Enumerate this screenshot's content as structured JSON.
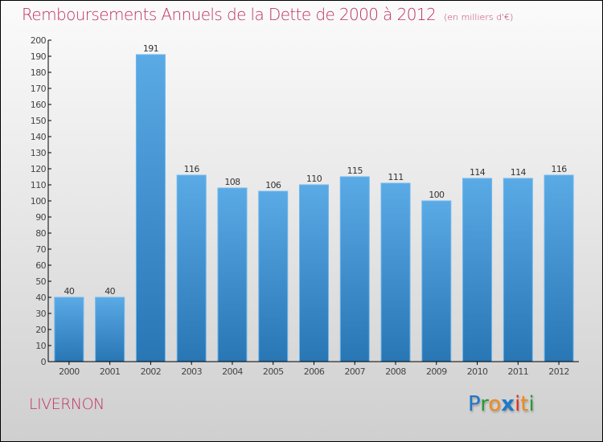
{
  "chart_data": {
    "type": "bar",
    "title": "Remboursements Annuels de la Dette de 2000 à 2012",
    "subtitle": "(en milliers d'€)",
    "xlabel": "",
    "ylabel": "",
    "categories": [
      "2000",
      "2001",
      "2002",
      "2003",
      "2004",
      "2005",
      "2006",
      "2007",
      "2008",
      "2009",
      "2010",
      "2011",
      "2012"
    ],
    "values": [
      40,
      40,
      191,
      116,
      108,
      106,
      110,
      115,
      111,
      100,
      114,
      114,
      116
    ],
    "ylim": [
      0,
      200
    ],
    "yticks": [
      0,
      10,
      20,
      30,
      40,
      50,
      60,
      70,
      80,
      90,
      100,
      110,
      120,
      130,
      140,
      150,
      160,
      170,
      180,
      190,
      200
    ],
    "grid": false,
    "legend": "none",
    "bar_color_top": "#5aaae6",
    "bar_color_bottom": "#2876b4"
  },
  "footer": {
    "place_name": "LIVERNON",
    "logo": {
      "letters": [
        {
          "ch": "P",
          "color": "#1f78c8"
        },
        {
          "ch": "r",
          "color": "#2a9a3a"
        },
        {
          "ch": "o",
          "color": "#f08a1c"
        },
        {
          "ch": "x",
          "color": "#1f78c8"
        },
        {
          "ch": "i",
          "color": "#e0301e"
        },
        {
          "ch": "t",
          "color": "#f08a1c"
        },
        {
          "ch": "i",
          "color": "#2a9a3a"
        }
      ]
    }
  },
  "colors": {
    "title": "#c0325f"
  }
}
